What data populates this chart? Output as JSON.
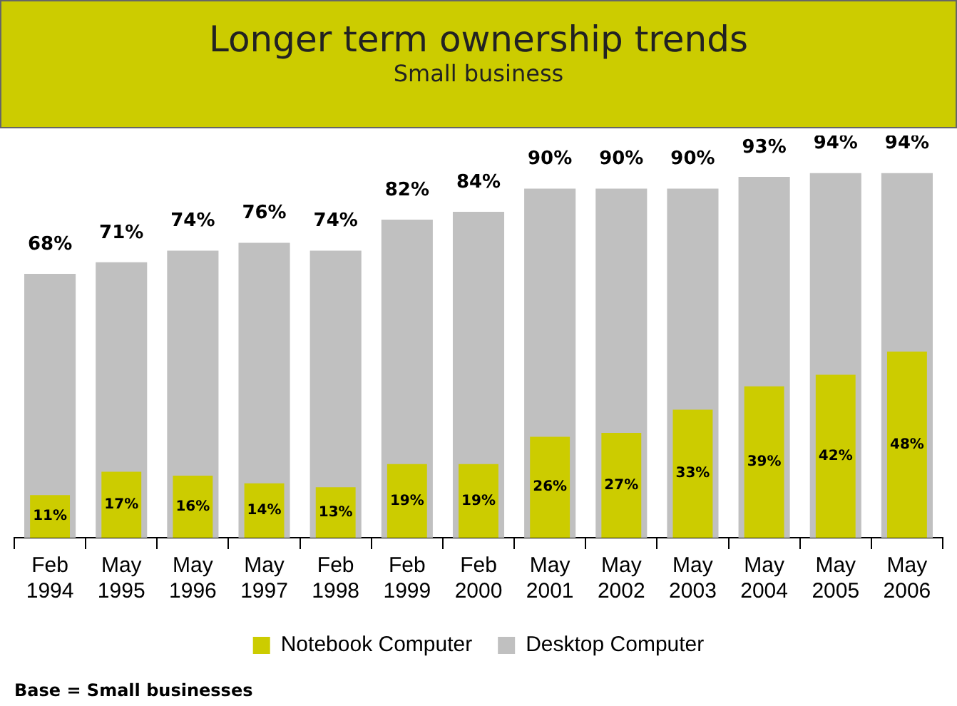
{
  "chart_data": {
    "type": "bar",
    "title": "Longer term ownership trends",
    "subtitle": "Small business",
    "categories": [
      "Feb 1994",
      "May 1995",
      "May 1996",
      "May 1997",
      "Feb 1998",
      "Feb 1999",
      "Feb 2000",
      "May 2001",
      "May 2002",
      "May 2003",
      "May 2004",
      "May 2005",
      "May 2006"
    ],
    "series": [
      {
        "name": "Notebook Computer",
        "color": "#cccc00",
        "values": [
          11,
          17,
          16,
          14,
          13,
          19,
          19,
          26,
          27,
          33,
          39,
          42,
          48
        ],
        "value_labels": [
          "11%",
          "17%",
          "16%",
          "14%",
          "13%",
          "19%",
          "19%",
          "26%",
          "27%",
          "33%",
          "39%",
          "42%",
          "48%"
        ]
      },
      {
        "name": "Desktop Computer",
        "color": "#c0c0c0",
        "values": [
          68,
          71,
          74,
          76,
          74,
          82,
          84,
          90,
          90,
          90,
          93,
          94,
          94
        ],
        "value_labels": [
          "68%",
          "71%",
          "74%",
          "76%",
          "74%",
          "82%",
          "84%",
          "90%",
          "90%",
          "90%",
          "93%",
          "94%",
          "94%"
        ]
      }
    ],
    "legend": "bottom",
    "annotations": [
      "Base = Small businesses"
    ]
  }
}
